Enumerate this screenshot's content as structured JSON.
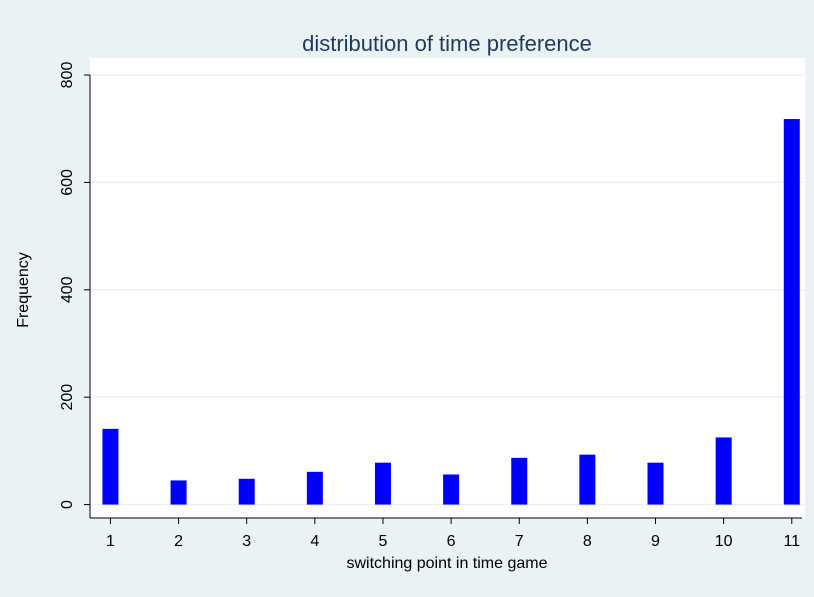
{
  "chart_data": {
    "type": "bar",
    "title": "distribution of time preference",
    "x_label": "switching point in time game",
    "y_label": "Frequency",
    "x": [
      1,
      2,
      3,
      4,
      5,
      6,
      7,
      8,
      9,
      10,
      11
    ],
    "values": [
      141,
      45,
      48,
      61,
      78,
      56,
      87,
      93,
      78,
      125,
      718
    ],
    "color": "#0000ff",
    "xlim": [
      0.7,
      11.15
    ],
    "xticks": [
      1,
      2,
      3,
      4,
      5,
      6,
      7,
      8,
      9,
      10,
      11
    ],
    "ylim": [
      -25,
      800
    ],
    "yticks": [
      0,
      200,
      400,
      600,
      800
    ],
    "grid": true
  }
}
